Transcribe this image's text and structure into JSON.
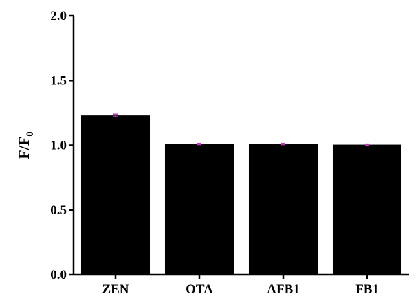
{
  "chart_data": {
    "type": "bar",
    "title": "",
    "xlabel": "",
    "ylabel_main": "F/F",
    "ylabel_sub": "0",
    "categories": [
      "ZEN",
      "OTA",
      "AFB1",
      "FB1"
    ],
    "values": [
      1.23,
      1.01,
      1.01,
      1.005
    ],
    "errors": [
      0.01,
      0.005,
      0.005,
      0.005
    ],
    "ylim": [
      0,
      2.0
    ],
    "yticks": [
      "0.0",
      "0.5",
      "1.0",
      "1.5",
      "2.0"
    ],
    "grid": false,
    "bar_color": "#000000",
    "error_color": "#cc33cc"
  }
}
